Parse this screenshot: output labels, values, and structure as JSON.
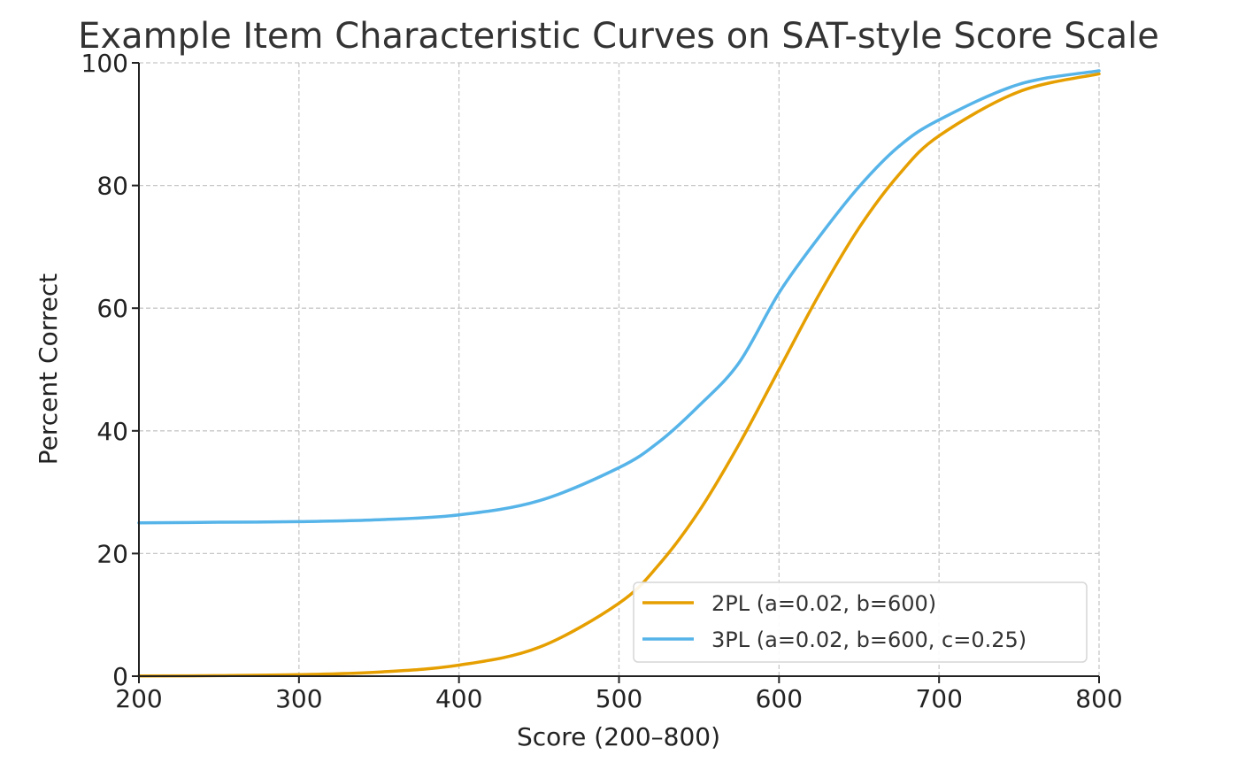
{
  "chart_data": {
    "type": "line",
    "title": "Example Item Characteristic Curves on SAT-style Score Scale",
    "xlabel": "Score (200–800)",
    "ylabel": "Percent Correct",
    "xlim": [
      200,
      800
    ],
    "ylim": [
      0,
      100
    ],
    "xticks": [
      200,
      300,
      400,
      500,
      600,
      700,
      800
    ],
    "yticks": [
      0,
      20,
      40,
      60,
      80,
      100
    ],
    "grid": true,
    "legend_position": "lower-right",
    "x": [
      200,
      250,
      300,
      350,
      400,
      450,
      500,
      525,
      550,
      575,
      600,
      625,
      650,
      675,
      700,
      750,
      800
    ],
    "series": [
      {
        "name": "2PL (a=0.02, b=600)",
        "color": "#E69F00",
        "values": [
          0.03,
          0.09,
          0.25,
          0.67,
          1.8,
          4.7,
          11.9,
          18.2,
          26.9,
          37.8,
          50.0,
          62.2,
          73.1,
          81.8,
          88.1,
          95.3,
          98.2
        ]
      },
      {
        "name": "3PL (a=0.02, b=600, c=0.25)",
        "color": "#56B4E9",
        "values": [
          25.0,
          25.1,
          25.2,
          25.5,
          26.3,
          28.6,
          34.0,
          38.2,
          44.1,
          51.1,
          62.5,
          71.6,
          79.8,
          86.4,
          90.7,
          96.5,
          98.7
        ]
      }
    ]
  }
}
